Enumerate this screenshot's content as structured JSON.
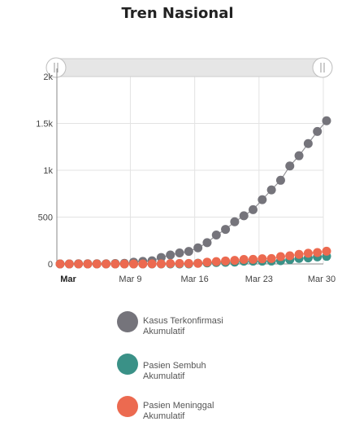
{
  "title": "Tren Nasional",
  "chart_data": {
    "type": "scatter",
    "title": "Tren Nasional",
    "ylim": [
      0,
      2000
    ],
    "yticks": [
      0,
      500,
      1000,
      1500,
      2000
    ],
    "ytick_labels": [
      "0",
      "500",
      "1k",
      "1.5k",
      "2k"
    ],
    "x_start": "2020-03-01",
    "x_end": "2020-03-30",
    "xticks": [
      "2020-03-01",
      "2020-03-09",
      "2020-03-16",
      "2020-03-23",
      "2020-03-30"
    ],
    "xtick_labels": [
      "Mar",
      "Mar 9",
      "Mar 16",
      "Mar 23",
      "Mar 30"
    ],
    "grid": true,
    "legend_position": "bottom",
    "x": [
      "2020-03-01",
      "2020-03-02",
      "2020-03-03",
      "2020-03-04",
      "2020-03-05",
      "2020-03-06",
      "2020-03-07",
      "2020-03-08",
      "2020-03-09",
      "2020-03-10",
      "2020-03-11",
      "2020-03-12",
      "2020-03-13",
      "2020-03-14",
      "2020-03-15",
      "2020-03-16",
      "2020-03-17",
      "2020-03-18",
      "2020-03-19",
      "2020-03-20",
      "2020-03-21",
      "2020-03-22",
      "2020-03-23",
      "2020-03-24",
      "2020-03-25",
      "2020-03-26",
      "2020-03-27",
      "2020-03-28",
      "2020-03-29",
      "2020-03-30"
    ],
    "series": [
      {
        "name": "Kasus Terkonfirmasi Akumulatif",
        "color": "#75747b",
        "values": [
          0,
          0,
          2,
          2,
          2,
          2,
          4,
          6,
          19,
          27,
          34,
          69,
          96,
          117,
          134,
          172,
          227,
          309,
          369,
          450,
          514,
          579,
          686,
          790,
          893,
          1046,
          1155,
          1285,
          1414,
          1528
        ]
      },
      {
        "name": "Pasien Sembuh Akumulatif",
        "color": "#3a9187",
        "values": [
          0,
          0,
          0,
          0,
          0,
          0,
          0,
          0,
          0,
          0,
          0,
          0,
          0,
          0,
          0,
          8,
          11,
          15,
          17,
          20,
          29,
          30,
          30,
          31,
          35,
          46,
          59,
          64,
          75,
          81
        ]
      },
      {
        "name": "Pasien Meninggal Akumulatif",
        "color": "#ec6a50",
        "values": [
          0,
          0,
          0,
          0,
          0,
          0,
          0,
          0,
          0,
          0,
          1,
          1,
          4,
          5,
          5,
          7,
          19,
          25,
          32,
          38,
          48,
          49,
          55,
          58,
          78,
          87,
          102,
          114,
          122,
          136
        ]
      }
    ]
  },
  "legend": [
    {
      "label": "Kasus Terkonfirmasi\nAkumulatif",
      "color": "#75747b"
    },
    {
      "label": "Pasien Sembuh Akumulatif",
      "color": "#3a9187"
    },
    {
      "label": "Pasien Meninggal\nAkumulatif",
      "color": "#ec6a50"
    }
  ]
}
